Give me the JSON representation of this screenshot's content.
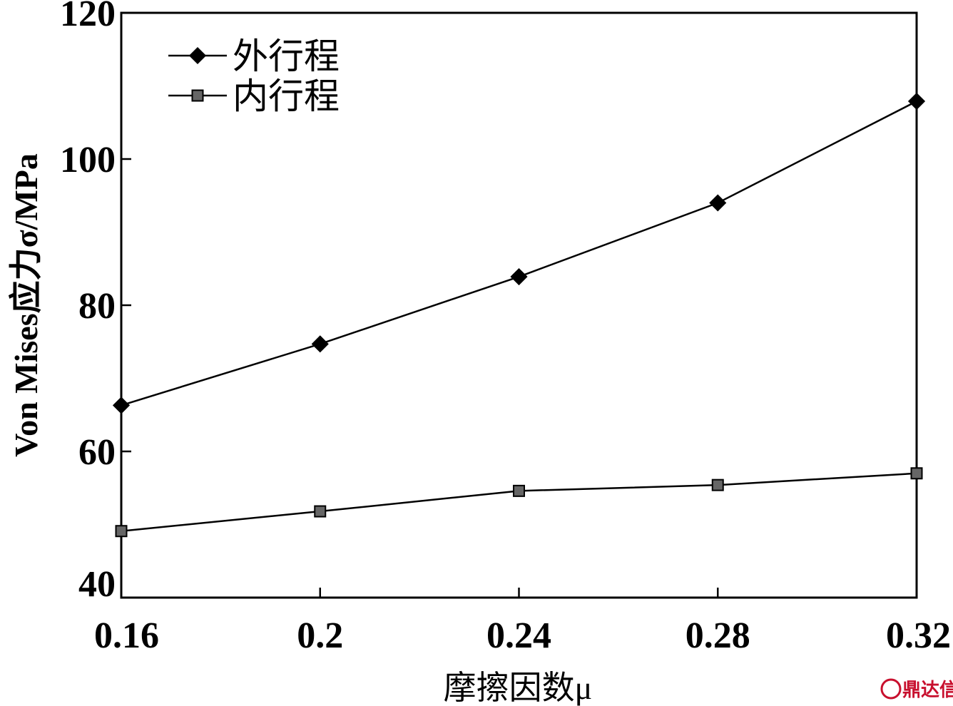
{
  "chart_data": {
    "type": "line",
    "x": [
      0.16,
      0.2,
      0.24,
      0.28,
      0.32
    ],
    "x_tick_labels": [
      "0.16",
      "0.2",
      "0.24",
      "0.28",
      "0.32"
    ],
    "xlim": [
      0.16,
      0.32
    ],
    "ylim": [
      40,
      120
    ],
    "y_ticks": [
      40,
      60,
      80,
      100,
      120
    ],
    "y_tick_labels": [
      "40",
      "60",
      "80",
      "100",
      "120"
    ],
    "xlabel": "摩擦因数μ",
    "ylabel": "Von Mises应力σ/MPa",
    "grid": false,
    "legend_position": "top-left",
    "series": [
      {
        "name": "外行程",
        "marker": "diamond",
        "color": "#000000",
        "values": [
          66.3,
          74.7,
          83.9,
          94.0,
          107.9
        ]
      },
      {
        "name": "内行程",
        "marker": "square",
        "color": "#666666",
        "values": [
          49.1,
          51.8,
          54.6,
          55.4,
          57.0
        ]
      }
    ]
  },
  "watermark": {
    "text": "鼎达信",
    "color": "#c8102e"
  }
}
